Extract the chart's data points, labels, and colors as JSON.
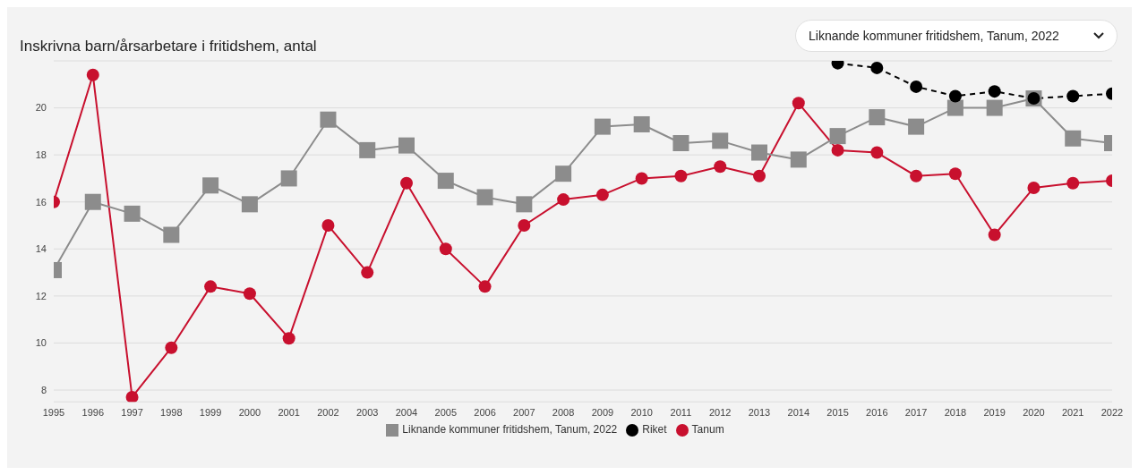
{
  "chart_data": {
    "type": "line",
    "title": "Inskrivna barn/årsarbetare i fritidshem, antal",
    "categories": [
      "1995",
      "1996",
      "1997",
      "1998",
      "1999",
      "2000",
      "2001",
      "2002",
      "2003",
      "2004",
      "2005",
      "2006",
      "2007",
      "2008",
      "2009",
      "2010",
      "2011",
      "2012",
      "2013",
      "2014",
      "2015",
      "2016",
      "2017",
      "2018",
      "2019",
      "2020",
      "2021",
      "2022"
    ],
    "series": [
      {
        "name": "Tanum",
        "color": "#c8102e",
        "marker": "circle",
        "line_style": "solid",
        "values": [
          16.0,
          21.4,
          7.7,
          9.8,
          12.4,
          12.1,
          10.2,
          15.0,
          13.0,
          16.8,
          14.0,
          12.4,
          15.0,
          16.1,
          16.3,
          17.0,
          17.1,
          17.5,
          17.1,
          20.2,
          18.2,
          18.1,
          17.1,
          17.2,
          14.6,
          16.6,
          16.8,
          16.9
        ]
      },
      {
        "name": "Liknande kommuner fritidshem, Tanum, 2022",
        "color": "#8c8c8c",
        "marker": "square",
        "line_style": "solid",
        "values": [
          13.1,
          16.0,
          15.5,
          14.6,
          16.7,
          15.9,
          17.0,
          19.5,
          18.2,
          18.4,
          16.9,
          16.2,
          15.9,
          17.2,
          19.2,
          19.3,
          18.5,
          18.6,
          18.1,
          17.8,
          18.8,
          19.6,
          19.2,
          20.0,
          20.0,
          20.4,
          18.7,
          18.5
        ]
      },
      {
        "name": "Riket",
        "color": "#000000",
        "marker": "circle",
        "line_style": "dashed",
        "values": [
          null,
          null,
          null,
          null,
          null,
          null,
          null,
          null,
          null,
          null,
          null,
          null,
          null,
          null,
          null,
          null,
          null,
          null,
          null,
          null,
          21.9,
          21.7,
          20.9,
          20.5,
          20.7,
          20.4,
          20.5,
          20.6
        ]
      }
    ],
    "ylim": [
      7.5,
      22
    ],
    "yticks": [
      8,
      10,
      12,
      14,
      16,
      18,
      20
    ],
    "grid": "y",
    "legend": "bottom",
    "annotations": [
      "Liknande kommuner fritidshem, Tanum, 2022"
    ]
  }
}
